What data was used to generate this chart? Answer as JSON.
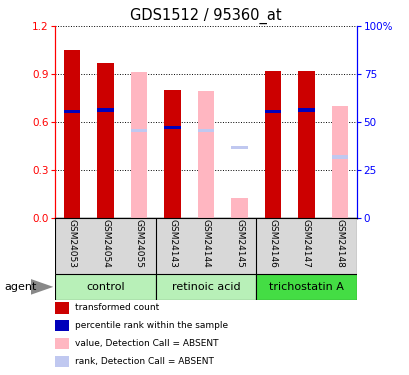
{
  "title": "GDS1512 / 95360_at",
  "samples": [
    "GSM24053",
    "GSM24054",
    "GSM24055",
    "GSM24143",
    "GSM24144",
    "GSM24145",
    "GSM24146",
    "GSM24147",
    "GSM24148"
  ],
  "transformed_count": [
    1.05,
    0.97,
    null,
    0.8,
    null,
    null,
    0.92,
    0.92,
    null
  ],
  "percentile_rank": [
    0.665,
    0.675,
    null,
    0.565,
    null,
    null,
    0.665,
    0.675,
    null
  ],
  "absent_value": [
    null,
    null,
    0.91,
    null,
    0.795,
    0.12,
    null,
    null,
    0.7
  ],
  "absent_rank": [
    null,
    null,
    0.545,
    null,
    0.545,
    0.44,
    null,
    null,
    0.38
  ],
  "ylim_left": [
    0,
    1.2
  ],
  "ylim_right": [
    0,
    100
  ],
  "yticks_left": [
    0,
    0.3,
    0.6,
    0.9,
    1.2
  ],
  "yticks_right": [
    0,
    25,
    50,
    75,
    100
  ],
  "color_transformed": "#cc0000",
  "color_percentile": "#0000bb",
  "color_absent_value": "#ffb6c1",
  "color_absent_rank": "#c0c8f0",
  "groups": [
    {
      "label": "control",
      "start": 0,
      "end": 2,
      "color": "#b8f0b8"
    },
    {
      "label": "retinoic acid",
      "start": 3,
      "end": 5,
      "color": "#b8f0b8"
    },
    {
      "label": "trichostatin A",
      "start": 6,
      "end": 8,
      "color": "#44dd44"
    }
  ],
  "legend_items": [
    {
      "color": "#cc0000",
      "label": "transformed count"
    },
    {
      "color": "#0000bb",
      "label": "percentile rank within the sample"
    },
    {
      "color": "#ffb6c1",
      "label": "value, Detection Call = ABSENT"
    },
    {
      "color": "#c0c8f0",
      "label": "rank, Detection Call = ABSENT"
    }
  ]
}
